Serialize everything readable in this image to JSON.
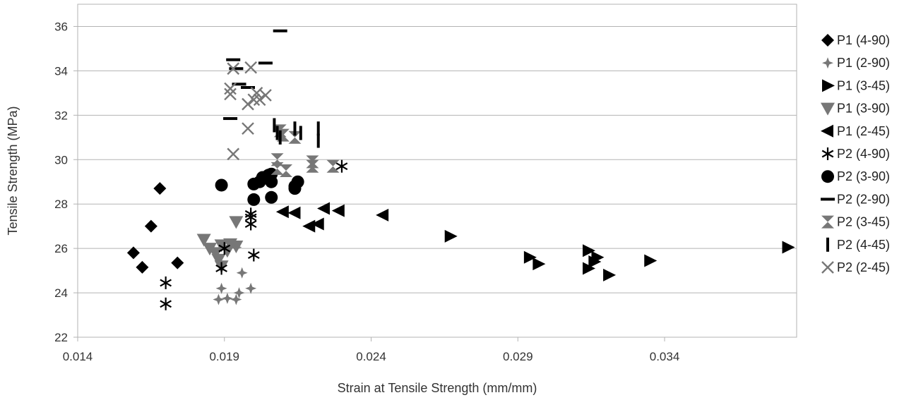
{
  "chart_data": {
    "type": "scatter",
    "title": "",
    "xlabel": "Strain at Tensile Strength (mm/mm)",
    "ylabel": "Tensile Strength (MPa)",
    "xlim": [
      0.014,
      0.0385
    ],
    "ylim": [
      22,
      37
    ],
    "xticks": [
      "0.014",
      "0.019",
      "0.024",
      "0.029",
      "0.034"
    ],
    "yticks": [
      "22",
      "24",
      "26",
      "28",
      "30",
      "32",
      "34",
      "36"
    ],
    "grid": "horizontal",
    "legend_position": "right",
    "series": [
      {
        "name": "P1 (4-90)",
        "marker": "diamond",
        "color": "#000000",
        "points": [
          [
            0.0159,
            25.8
          ],
          [
            0.0162,
            25.15
          ],
          [
            0.0165,
            27.0
          ],
          [
            0.0168,
            28.7
          ],
          [
            0.0174,
            25.35
          ]
        ]
      },
      {
        "name": "P1 (2-90)",
        "marker": "plus4",
        "color": "#777777",
        "points": [
          [
            0.0188,
            23.7
          ],
          [
            0.0189,
            24.2
          ],
          [
            0.0191,
            23.75
          ],
          [
            0.0194,
            23.7
          ],
          [
            0.0195,
            24.0
          ],
          [
            0.0196,
            24.9
          ],
          [
            0.0199,
            24.2
          ],
          [
            0.0194,
            26.05
          ]
        ]
      },
      {
        "name": "P1 (3-45)",
        "marker": "triangle-right",
        "color": "#000000",
        "points": [
          [
            0.0267,
            26.55
          ],
          [
            0.0294,
            25.6
          ],
          [
            0.0297,
            25.3
          ],
          [
            0.0314,
            25.9
          ],
          [
            0.0314,
            25.1
          ],
          [
            0.0316,
            25.4
          ],
          [
            0.0317,
            25.6
          ],
          [
            0.0321,
            24.8
          ],
          [
            0.0335,
            25.45
          ],
          [
            0.0382,
            26.05
          ]
        ]
      },
      {
        "name": "P1 (3-90)",
        "marker": "triangle-down",
        "color": "#777777",
        "points": [
          [
            0.0183,
            26.4
          ],
          [
            0.0185,
            26.0
          ],
          [
            0.0187,
            25.8
          ],
          [
            0.0188,
            25.5
          ],
          [
            0.0189,
            25.2
          ],
          [
            0.0189,
            26.15
          ],
          [
            0.0191,
            25.9
          ],
          [
            0.0192,
            26.2
          ],
          [
            0.0194,
            26.1
          ],
          [
            0.0194,
            27.2
          ]
        ]
      },
      {
        "name": "P1 (2-45)",
        "marker": "triangle-left",
        "color": "#000000",
        "points": [
          [
            0.021,
            27.65
          ],
          [
            0.0214,
            27.6
          ],
          [
            0.0219,
            27.0
          ],
          [
            0.0222,
            27.1
          ],
          [
            0.0224,
            27.8
          ],
          [
            0.0229,
            27.7
          ],
          [
            0.0244,
            27.5
          ]
        ]
      },
      {
        "name": "P2 (4-90)",
        "marker": "asterisk",
        "color": "#000000",
        "points": [
          [
            0.017,
            24.45
          ],
          [
            0.017,
            23.5
          ],
          [
            0.0189,
            25.1
          ],
          [
            0.019,
            26.0
          ],
          [
            0.0199,
            27.1
          ],
          [
            0.0199,
            27.4
          ],
          [
            0.0199,
            27.55
          ],
          [
            0.02,
            25.7
          ],
          [
            0.023,
            29.7
          ]
        ]
      },
      {
        "name": "P2 (3-90)",
        "marker": "circle",
        "color": "#000000",
        "points": [
          [
            0.0189,
            28.85
          ],
          [
            0.02,
            28.9
          ],
          [
            0.02,
            28.2
          ],
          [
            0.0202,
            29.0
          ],
          [
            0.0203,
            29.2
          ],
          [
            0.0205,
            29.3
          ],
          [
            0.0206,
            29.35
          ],
          [
            0.0206,
            29.0
          ],
          [
            0.0206,
            28.3
          ],
          [
            0.0214,
            28.8
          ],
          [
            0.0214,
            28.7
          ],
          [
            0.0215,
            29.0
          ]
        ]
      },
      {
        "name": "P2 (2-90)",
        "marker": "dash",
        "color": "#000000",
        "points": [
          [
            0.0193,
            34.5
          ],
          [
            0.0194,
            34.1
          ],
          [
            0.0195,
            33.4
          ],
          [
            0.0198,
            33.25
          ],
          [
            0.0192,
            31.85
          ],
          [
            0.0204,
            34.35
          ],
          [
            0.0209,
            35.8
          ]
        ]
      },
      {
        "name": "P2 (3-45)",
        "marker": "hourglass",
        "color": "#777777",
        "points": [
          [
            0.0208,
            30.0
          ],
          [
            0.0208,
            29.6
          ],
          [
            0.0209,
            31.3
          ],
          [
            0.021,
            31.1
          ],
          [
            0.0211,
            29.5
          ],
          [
            0.0214,
            31.0
          ],
          [
            0.022,
            29.9
          ],
          [
            0.022,
            29.7
          ],
          [
            0.0227,
            29.7
          ]
        ]
      },
      {
        "name": "P2 (4-45)",
        "marker": "vbar",
        "color": "#000000",
        "points": [
          [
            0.0207,
            31.55
          ],
          [
            0.0208,
            31.2
          ],
          [
            0.0209,
            31.0
          ],
          [
            0.0214,
            31.4
          ],
          [
            0.0216,
            31.2
          ],
          [
            0.0222,
            31.4
          ],
          [
            0.0222,
            30.85
          ]
        ]
      },
      {
        "name": "P2 (2-45)",
        "marker": "x",
        "color": "#777777",
        "points": [
          [
            0.0192,
            32.95
          ],
          [
            0.0192,
            33.2
          ],
          [
            0.0193,
            34.1
          ],
          [
            0.0193,
            30.25
          ],
          [
            0.0198,
            31.4
          ],
          [
            0.0198,
            32.5
          ],
          [
            0.02,
            32.7
          ],
          [
            0.0201,
            33.0
          ],
          [
            0.0202,
            32.7
          ],
          [
            0.0204,
            32.9
          ],
          [
            0.0199,
            34.15
          ]
        ]
      }
    ]
  }
}
